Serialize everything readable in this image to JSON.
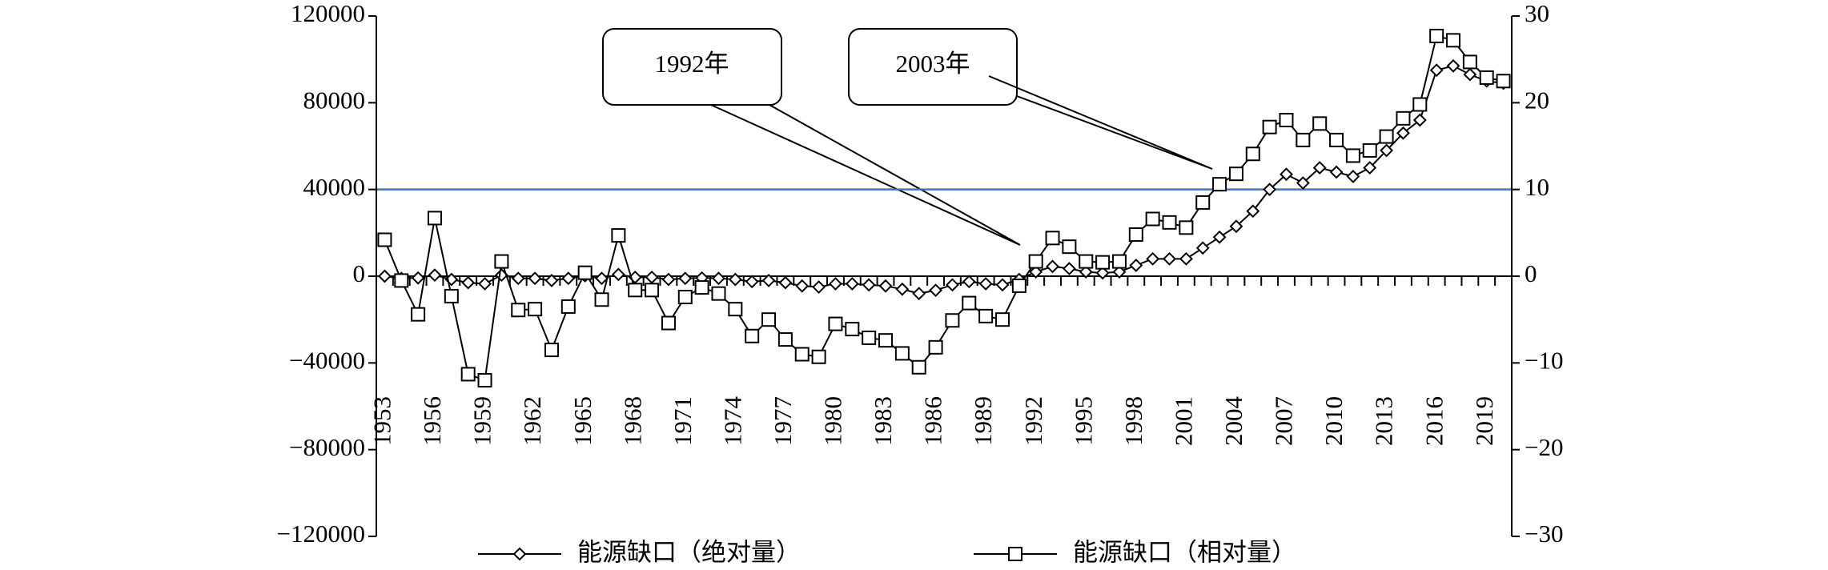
{
  "chart_data": {
    "type": "line",
    "categories": [
      "1953",
      null,
      null,
      "1956",
      null,
      null,
      "1959",
      null,
      null,
      "1962",
      null,
      null,
      "1965",
      null,
      null,
      "1968",
      null,
      null,
      "1971",
      null,
      null,
      "1974",
      null,
      null,
      "1977",
      null,
      null,
      "1980",
      null,
      null,
      "1983",
      null,
      null,
      "1986",
      null,
      null,
      "1989",
      null,
      null,
      "1992",
      null,
      null,
      "1995",
      null,
      null,
      "1998",
      null,
      null,
      "2001",
      null,
      null,
      "2004",
      null,
      null,
      "2007",
      null,
      null,
      "2010",
      null,
      null,
      "2013",
      null,
      null,
      "2016",
      null,
      null,
      "2019",
      null
    ],
    "series": [
      {
        "name": "能源缺口（绝对量）",
        "color": "#000000",
        "marker": "diamond",
        "values": [
          0,
          -1000,
          -800,
          500,
          -1500,
          -3000,
          -3500,
          500,
          -1000,
          -1000,
          -2000,
          -1000,
          200,
          -1000,
          800,
          -500,
          -500,
          -1500,
          -1000,
          -800,
          -1000,
          -1500,
          -2500,
          -2000,
          -3000,
          -4500,
          -5000,
          -3500,
          -3500,
          -4000,
          -4500,
          -6000,
          -8000,
          -6500,
          -4000,
          -2500,
          -3500,
          -4000,
          -1500,
          2000,
          4500,
          3500,
          2000,
          1500,
          2000,
          5000,
          8000,
          8000,
          8000,
          13000,
          18000,
          23000,
          30000,
          40000,
          47000,
          43000,
          50000,
          48000,
          46000,
          50000,
          58000,
          66000,
          72000,
          95000,
          97000,
          93000,
          90000,
          89000
        ]
      },
      {
        "name": "能源缺口（相对量）",
        "color": "#000000",
        "marker": "square",
        "axis": "y2",
        "values": [
          4.2,
          -0.5,
          -4.4,
          6.7,
          -2.3,
          -11.3,
          -12.0,
          1.7,
          -3.9,
          -3.8,
          -8.5,
          -3.5,
          0.4,
          -2.7,
          4.7,
          -1.6,
          -1.6,
          -5.4,
          -2.4,
          -1.3,
          -2.0,
          -3.8,
          -6.9,
          -5.0,
          -7.3,
          -9.0,
          -9.3,
          -5.5,
          -6.1,
          -7.1,
          -7.4,
          -8.9,
          -10.5,
          -8.2,
          -5.1,
          -3.1,
          -4.6,
          -5.0,
          -1.1,
          1.7,
          4.4,
          3.4,
          1.7,
          1.6,
          1.7,
          4.8,
          6.6,
          6.2,
          5.6,
          8.5,
          10.6,
          11.8,
          14.1,
          17.2,
          18.0,
          15.7,
          17.6,
          15.7,
          13.9,
          14.5,
          16.1,
          18.2,
          19.8,
          27.7,
          27.2,
          24.7,
          22.9,
          22.5
        ]
      }
    ],
    "ylim": [
      -120000,
      120000
    ],
    "yticks": [
      {
        "value": -120000,
        "label": "−120000"
      },
      {
        "value": -80000,
        "label": "−80000"
      },
      {
        "value": -40000,
        "label": "−40000"
      },
      0,
      40000,
      80000,
      120000
    ],
    "y2lim": [
      -30,
      30
    ],
    "y2ticks": [
      {
        "value": -30,
        "label": "−30"
      },
      {
        "value": -20,
        "label": "−20"
      },
      {
        "value": -10,
        "label": "−10"
      },
      0,
      10,
      20,
      30
    ],
    "reference_line": {
      "value": 40000,
      "color": "#4472c4"
    },
    "annotations": [
      "1992年",
      "2003年"
    ],
    "grid": false,
    "legend": "bottom"
  }
}
